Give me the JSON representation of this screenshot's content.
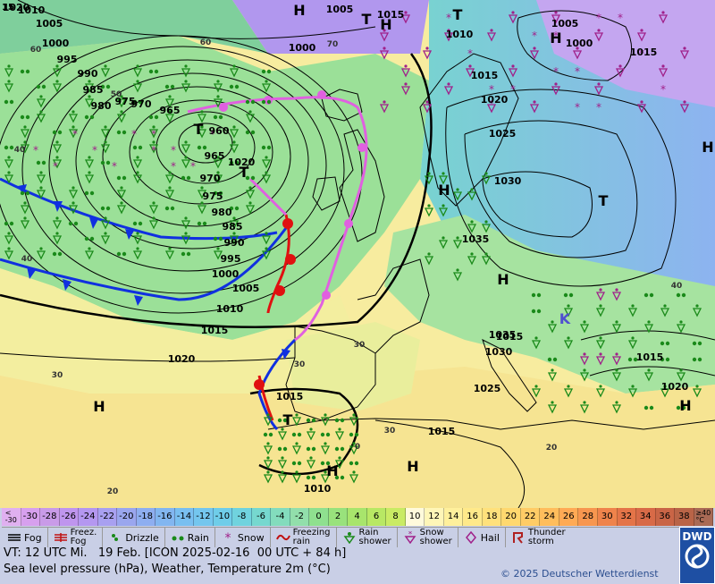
{
  "map": {
    "pressure_labels": [
      "1010",
      "1005",
      "1000",
      "995",
      "990",
      "985",
      "980",
      "975",
      "970",
      "965",
      "960",
      "965",
      "970",
      "975",
      "980",
      "985",
      "990",
      "995",
      "1000",
      "1005",
      "1010",
      "1015",
      "1020",
      "1005",
      "1015",
      "1010",
      "1015",
      "1000",
      "1005",
      "1015",
      "1025",
      "1030",
      "1035",
      "1035",
      "1030",
      "1025",
      "1020",
      "1015",
      "1015",
      "1020",
      "1015",
      "1010",
      "1000",
      "1020",
      "1015",
      "1020"
    ],
    "system_labels": [
      "H",
      "H",
      "T",
      "T",
      "T",
      "T",
      "H",
      "H",
      "H",
      "H",
      "T",
      "H",
      "T",
      "H",
      "H",
      "K",
      "H"
    ],
    "temperature_labels": [
      "60",
      "50",
      "40",
      "40",
      "30",
      "60",
      "70",
      "30",
      "40",
      "20",
      "30",
      "20",
      "30",
      "0"
    ],
    "edge_values": [
      "15"
    ]
  },
  "scale": {
    "labels": [
      "<\n-30",
      "-30",
      "-28",
      "-26",
      "-24",
      "-22",
      "-20",
      "-18",
      "-16",
      "-14",
      "-12",
      "-10",
      "-8",
      "-6",
      "-4",
      "-2",
      "0",
      "2",
      "4",
      "6",
      "8",
      "10",
      "12",
      "14",
      "16",
      "18",
      "20",
      "22",
      "24",
      "26",
      "28",
      "30",
      "32",
      "34",
      "36",
      "38",
      "≥40\n°C"
    ],
    "colors": [
      "#e0b0f0",
      "#d7a0ee",
      "#c99be8",
      "#bf95ee",
      "#b497f0",
      "#a8a0f0",
      "#9aa6ee",
      "#8eaef0",
      "#82b6f0",
      "#79bff0",
      "#74c6ee",
      "#6fcde9",
      "#70d3de",
      "#76d8cf",
      "#83dcbd",
      "#92dfab",
      "#8fe08f",
      "#99e27c",
      "#a8e56c",
      "#b8e864",
      "#c9eb64",
      "#fffadc",
      "#fff6b8",
      "#fff09c",
      "#ffe98a",
      "#ffe17c",
      "#ffd86f",
      "#ffcc66",
      "#ffbd5c",
      "#ffaa55",
      "#f7964f",
      "#ef834b",
      "#e47448",
      "#d86a47",
      "#c96546",
      "#b96447",
      "#a96a55"
    ]
  },
  "legend": {
    "fog": "Fog",
    "freezing_fog": "Freez.\nFog",
    "drizzle": "Drizzle",
    "rain": "Rain",
    "snow": "Snow",
    "freezing_rain": "Freezing\nrain",
    "rain_shower": "Rain\nshower",
    "snow_shower": "Snow\nshower",
    "hail": "Hail",
    "thunderstorm": "Thunder\nstorm"
  },
  "footer": {
    "vt_line": "VT: 12 UTC Mi.   19 Feb. [ICON 2025-02-16  00 UTC + 84 h]",
    "description": "Sea level pressure (hPa), Weather, Temperature 2m (°C)",
    "copyright": "© 2025 Deutscher Wetterdienst",
    "logo": "DWD"
  },
  "colors": {
    "warm_front": "#e01010",
    "cold_front": "#1030e0",
    "occlusion": "#e060e0",
    "rain_green": "#1a8a1a",
    "snow_purple": "#a0208a",
    "dwd_blue": "#1e4fa3"
  },
  "icons": [
    "fog-icon",
    "freezing-fog-icon",
    "drizzle-icon",
    "rain-icon",
    "snow-icon",
    "freezing-rain-icon",
    "rain-shower-icon",
    "snow-shower-icon",
    "hail-icon",
    "thunderstorm-icon",
    "dwd-logo-icon"
  ]
}
